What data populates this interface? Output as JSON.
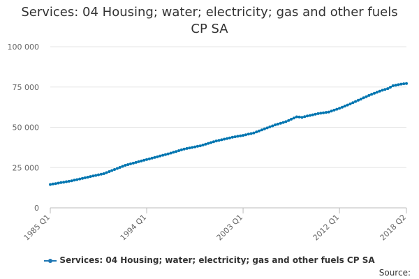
{
  "chart_data": {
    "type": "line",
    "title_line1": "Services: 04 Housing; water; electricity; gas and other fuels",
    "title_line2": "CP SA",
    "xlabel": "",
    "ylabel": "",
    "ylim": [
      0,
      100000
    ],
    "y_ticks": [
      0,
      25000,
      50000,
      75000,
      100000
    ],
    "y_tick_labels": [
      "0",
      "25 000",
      "50 000",
      "75 000",
      "100 000"
    ],
    "x_tick_labels": [
      "1985 Q1",
      "1994 Q1",
      "2003 Q1",
      "2012 Q1",
      "2018 Q2"
    ],
    "x_tick_indices": [
      0,
      36,
      72,
      108,
      133
    ],
    "color": "#0075b0",
    "legend": "Services: 04 Housing; water; electricity; gas and other fuels CP SA",
    "legend_position": "bottom",
    "series": [
      {
        "name": "Services: 04 Housing; water; electricity; gas and other fuels CP SA",
        "anchors": [
          [
            0,
            14500
          ],
          [
            8,
            16800
          ],
          [
            16,
            19800
          ],
          [
            20,
            21200
          ],
          [
            24,
            23800
          ],
          [
            28,
            26400
          ],
          [
            36,
            30000
          ],
          [
            44,
            33500
          ],
          [
            50,
            36500
          ],
          [
            56,
            38500
          ],
          [
            62,
            41500
          ],
          [
            68,
            43800
          ],
          [
            72,
            45000
          ],
          [
            76,
            46500
          ],
          [
            80,
            49000
          ],
          [
            84,
            51500
          ],
          [
            88,
            53500
          ],
          [
            92,
            56500
          ],
          [
            94,
            56200
          ],
          [
            96,
            57000
          ],
          [
            100,
            58500
          ],
          [
            104,
            59500
          ],
          [
            108,
            61800
          ],
          [
            112,
            64500
          ],
          [
            116,
            67500
          ],
          [
            120,
            70500
          ],
          [
            124,
            73000
          ],
          [
            126,
            74000
          ],
          [
            128,
            75800
          ],
          [
            131,
            76800
          ],
          [
            133,
            77200
          ]
        ]
      }
    ]
  },
  "source_label": "Source:"
}
